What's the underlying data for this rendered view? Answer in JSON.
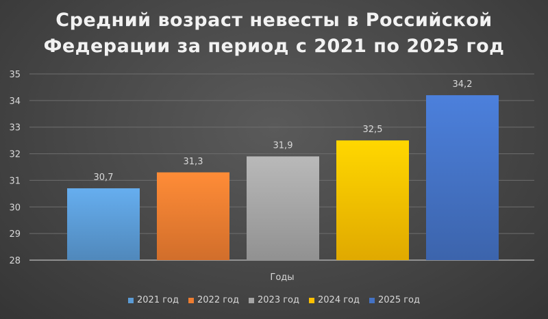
{
  "title_line_1": "Средний возраст невесты в Российской",
  "title_line_2": "Федерации за период с 2021 по 2025 год",
  "chart_data": {
    "type": "bar",
    "title": "Средний возраст невесты в Российской Федерации за период с 2021 по 2025 год",
    "xlabel": "Годы",
    "ylabel": "",
    "ylim": [
      28,
      35
    ],
    "yticks": [
      "28",
      "29",
      "30",
      "31",
      "32",
      "33",
      "34",
      "35"
    ],
    "grid": true,
    "legend_position": "bottom",
    "series": [
      {
        "name": "2021 год",
        "value": 30.7,
        "label": "30,7",
        "color": "#5b9bd5"
      },
      {
        "name": "2022 год",
        "value": 31.3,
        "label": "31,3",
        "color": "#ed7d31"
      },
      {
        "name": "2023 год",
        "value": 31.9,
        "label": "31,9",
        "color": "#a5a5a5"
      },
      {
        "name": "2024 год",
        "value": 32.5,
        "label": "32,5",
        "color": "#ffc000"
      },
      {
        "name": "2025 год",
        "value": 34.2,
        "label": "34,2",
        "color": "#4472c4"
      }
    ]
  }
}
